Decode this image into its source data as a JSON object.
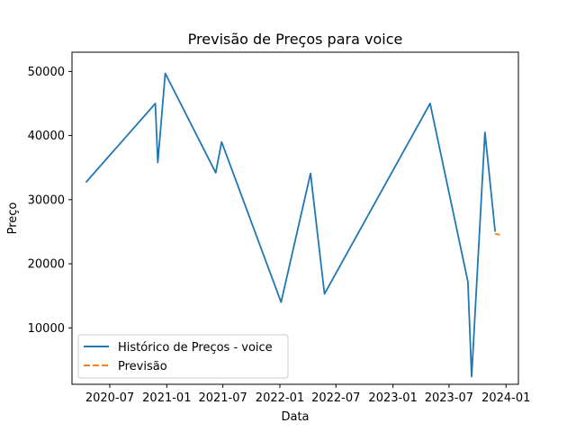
{
  "chart_data": {
    "type": "line",
    "title": "Previsão de Preços para voice",
    "xlabel": "Data",
    "ylabel": "Preço",
    "x_axis": {
      "type": "date",
      "range": [
        "2020-03-01",
        "2024-02-10"
      ],
      "ticks": [
        {
          "date": "2020-07-01",
          "label": "2020-07"
        },
        {
          "date": "2021-01-01",
          "label": "2021-01"
        },
        {
          "date": "2021-07-01",
          "label": "2021-07"
        },
        {
          "date": "2022-01-01",
          "label": "2022-01"
        },
        {
          "date": "2022-07-01",
          "label": "2022-07"
        },
        {
          "date": "2023-01-01",
          "label": "2023-01"
        },
        {
          "date": "2023-07-01",
          "label": "2023-07"
        },
        {
          "date": "2024-01-01",
          "label": "2024-01"
        }
      ]
    },
    "y_axis": {
      "range": [
        1200,
        53000
      ],
      "ticks": [
        10000,
        20000,
        30000,
        40000,
        50000
      ]
    },
    "grid": false,
    "legend": {
      "position": "lower-left"
    },
    "series": [
      {
        "name": "Histórico de Preços - voice",
        "color": "#1f77b4",
        "style": "solid",
        "points": [
          {
            "x": "2020-04-15",
            "y": 32700
          },
          {
            "x": "2020-11-25",
            "y": 45000
          },
          {
            "x": "2020-12-03",
            "y": 35800
          },
          {
            "x": "2020-12-27",
            "y": 49700
          },
          {
            "x": "2021-06-08",
            "y": 34200
          },
          {
            "x": "2021-06-27",
            "y": 39000
          },
          {
            "x": "2022-01-05",
            "y": 14000
          },
          {
            "x": "2022-04-10",
            "y": 34100
          },
          {
            "x": "2022-05-25",
            "y": 15300
          },
          {
            "x": "2023-05-01",
            "y": 45000
          },
          {
            "x": "2023-08-31",
            "y": 17200
          },
          {
            "x": "2023-09-12",
            "y": 2400
          },
          {
            "x": "2023-10-25",
            "y": 40500
          },
          {
            "x": "2023-11-27",
            "y": 25000
          }
        ]
      },
      {
        "name": "Previsão",
        "color": "#ff7f0e",
        "style": "dashed",
        "points": [
          {
            "x": "2023-11-27",
            "y": 24700
          },
          {
            "x": "2023-12-12",
            "y": 24500
          }
        ]
      }
    ]
  }
}
